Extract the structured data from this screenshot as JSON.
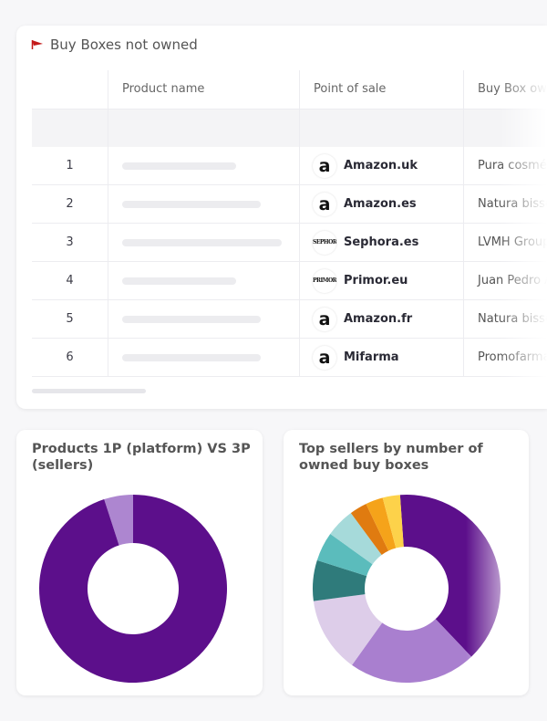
{
  "table": {
    "title": "Buy Boxes not owned",
    "columns": [
      "Product name",
      "Point of sale",
      "Buy Box own"
    ],
    "rows": [
      {
        "index": "1",
        "logo": "a",
        "pos": "Amazon.uk",
        "owner": "Pura cosméti"
      },
      {
        "index": "2",
        "logo": "a",
        "pos": "Amazon.es",
        "owner": "Natura bissé"
      },
      {
        "index": "3",
        "logo": "SEPHORA",
        "pos": "Sephora.es",
        "owner": "LVMH Group"
      },
      {
        "index": "4",
        "logo": "PRIMOR",
        "pos": "Primor.eu",
        "owner": "Juan Pedro A"
      },
      {
        "index": "5",
        "logo": "a",
        "pos": "Amazon.fr",
        "owner": "Natura bissé"
      },
      {
        "index": "6",
        "logo": "a",
        "pos": "Mifarma",
        "owner": "Promofarma"
      }
    ]
  },
  "chart_data": [
    {
      "type": "pie",
      "title": "Products 1P (platform) VS 3P (sellers)",
      "values": [
        5,
        95
      ],
      "colors": [
        "#ad86d0",
        "#5c0f8b"
      ]
    },
    {
      "type": "pie",
      "title": "Top sellers by number of owned buy boxes",
      "values": [
        39,
        22,
        13,
        7,
        5,
        5,
        3,
        3,
        3
      ],
      "colors": [
        "#5c0f8b",
        "#a97fcf",
        "#ddcde9",
        "#2f7b7b",
        "#5bbcbc",
        "#a6dada",
        "#e07b10",
        "#f5a31a",
        "#fdd24a"
      ]
    }
  ]
}
